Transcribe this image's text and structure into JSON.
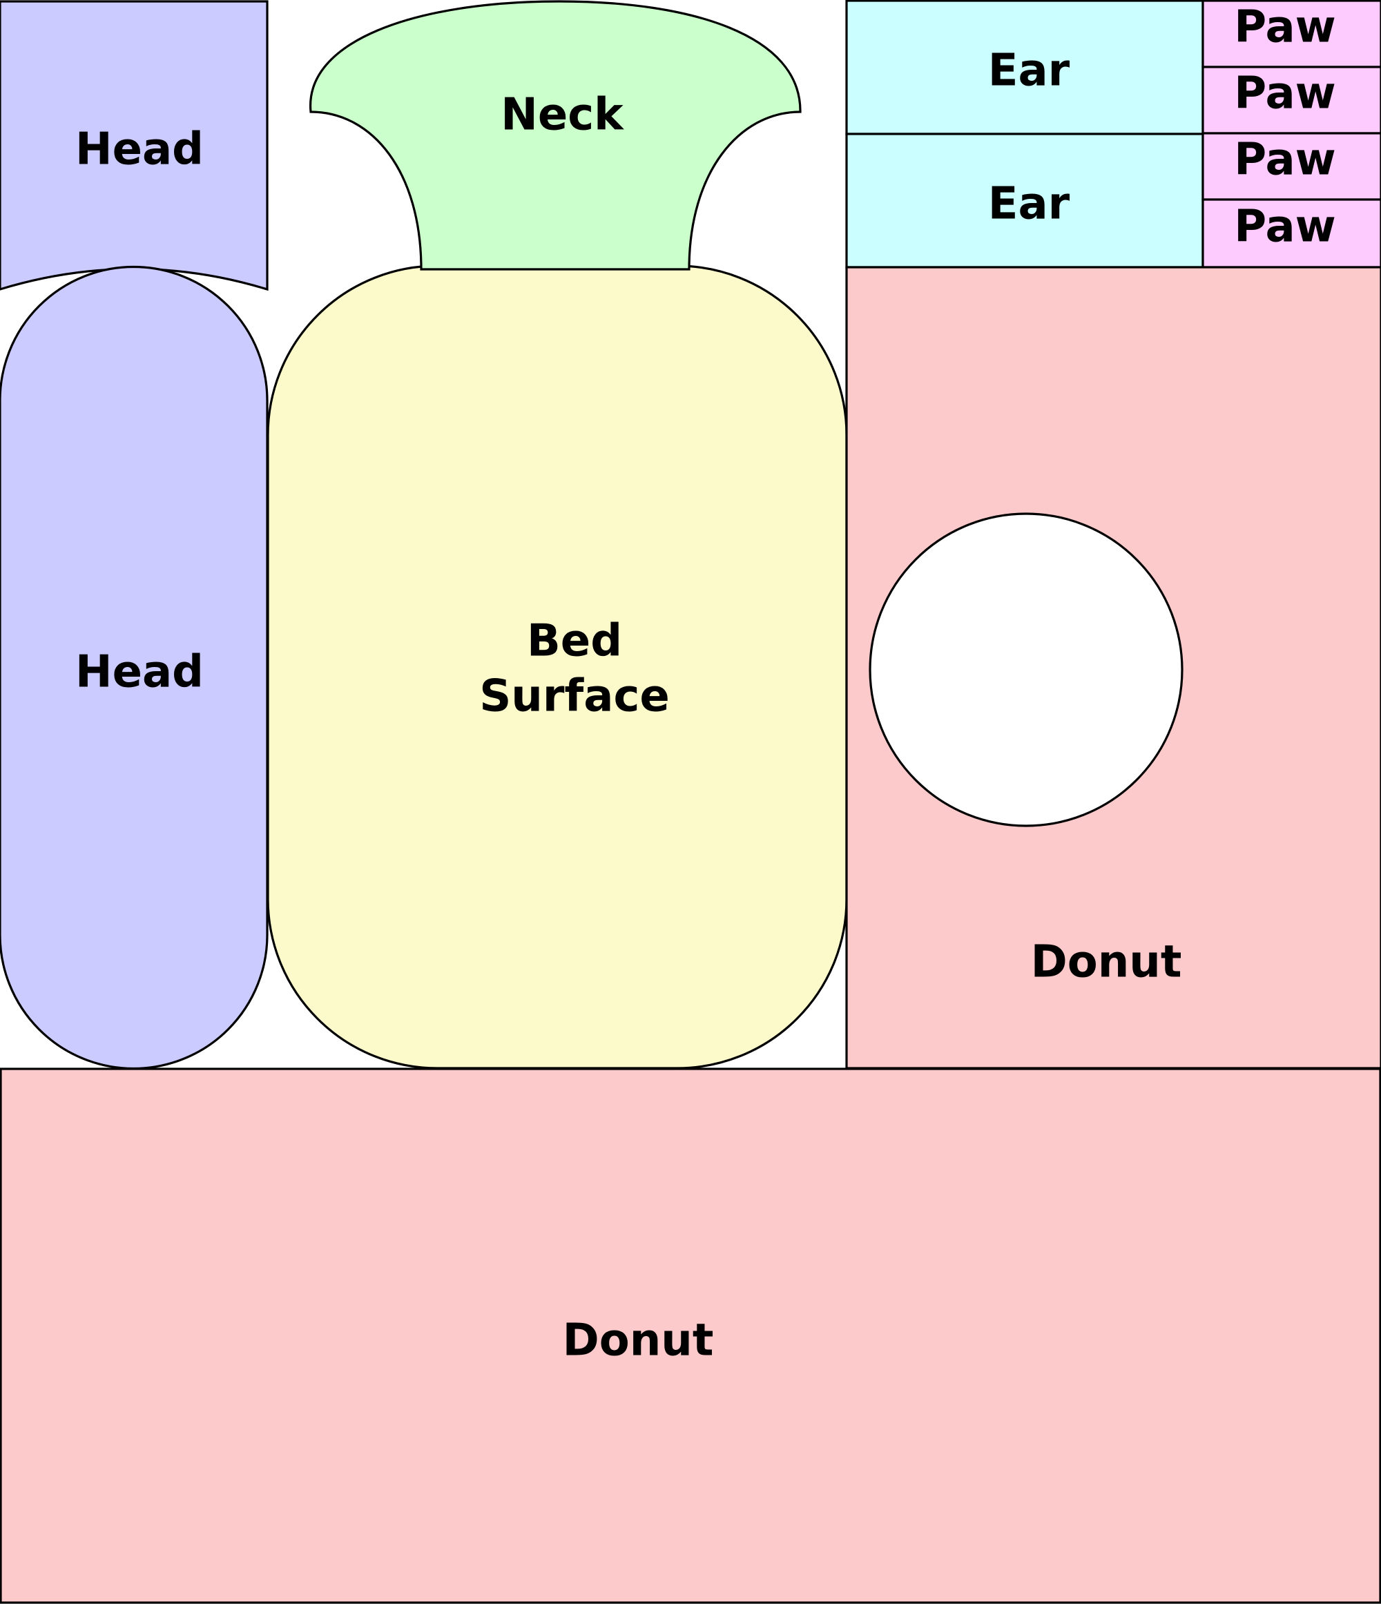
{
  "colors": {
    "head": "#cbcbff",
    "neck": "#cbffcb",
    "bed_surface": "#fcf9cb",
    "ear": "#cbffff",
    "paw": "#fecbfe",
    "donut": "#fccaca",
    "outline": "#000000",
    "background": "#ffffff"
  },
  "pieces": {
    "head_top": {
      "label": "Head"
    },
    "head_bottom": {
      "label": "Head"
    },
    "neck": {
      "label": "Neck"
    },
    "bed_surface": {
      "label_line1": "Bed",
      "label_line2": "Surface"
    },
    "ear_top": {
      "label": "Ear"
    },
    "ear_bottom": {
      "label": "Ear"
    },
    "paw_1": {
      "label": "Paw"
    },
    "paw_2": {
      "label": "Paw"
    },
    "paw_3": {
      "label": "Paw"
    },
    "paw_4": {
      "label": "Paw"
    },
    "donut_right": {
      "label": "Donut"
    },
    "donut_bottom": {
      "label": "Donut"
    }
  }
}
